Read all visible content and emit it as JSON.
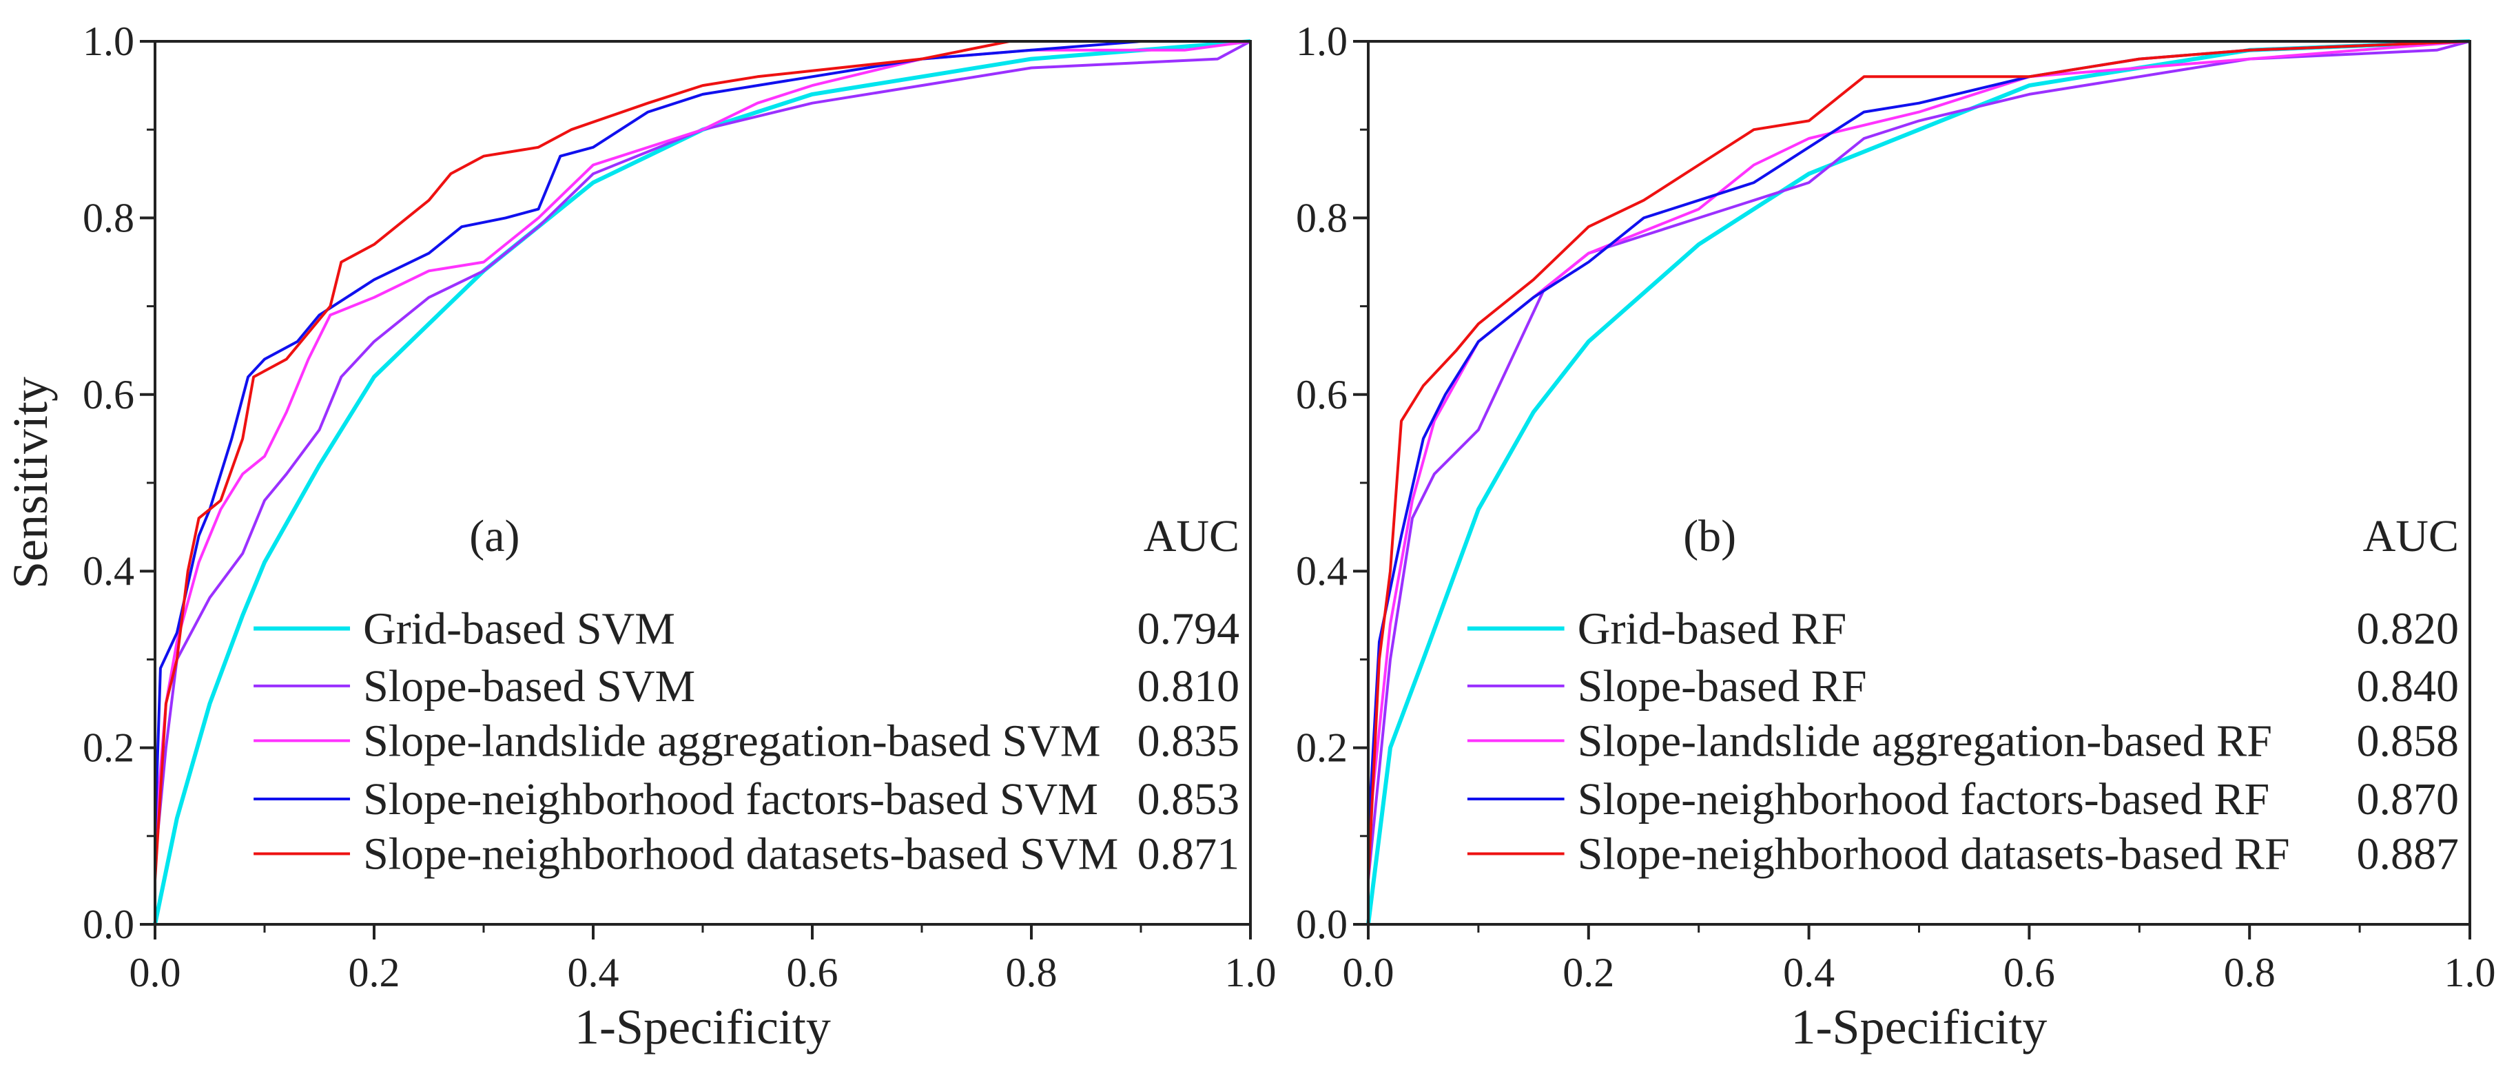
{
  "chart_data": [
    {
      "type": "line",
      "panel_label": "(a)",
      "xlabel": "1-Specificity",
      "ylabel": "Sensitivity",
      "xlim": [
        0,
        1
      ],
      "ylim": [
        0,
        1
      ],
      "xticks": [
        "0.0",
        "0.2",
        "0.4",
        "0.6",
        "0.8",
        "1.0"
      ],
      "yticks": [
        "0.0",
        "0.2",
        "0.4",
        "0.6",
        "0.8",
        "1.0"
      ],
      "grid": false,
      "legend_header": "AUC",
      "legend_position": "bottom-right",
      "series": [
        {
          "name": "Grid-based SVM",
          "auc": "0.794",
          "color": "#00e5ee",
          "points": [
            [
              0,
              0
            ],
            [
              0.02,
              0.12
            ],
            [
              0.05,
              0.25
            ],
            [
              0.08,
              0.35
            ],
            [
              0.1,
              0.41
            ],
            [
              0.15,
              0.52
            ],
            [
              0.2,
              0.62
            ],
            [
              0.25,
              0.68
            ],
            [
              0.3,
              0.74
            ],
            [
              0.35,
              0.79
            ],
            [
              0.4,
              0.84
            ],
            [
              0.5,
              0.9
            ],
            [
              0.6,
              0.94
            ],
            [
              0.7,
              0.96
            ],
            [
              0.8,
              0.98
            ],
            [
              0.9,
              0.99
            ],
            [
              1,
              1
            ]
          ]
        },
        {
          "name": "Slope-based SVM",
          "auc": "0.810",
          "color": "#9b30ff",
          "points": [
            [
              0,
              0.07
            ],
            [
              0.01,
              0.2
            ],
            [
              0.02,
              0.3
            ],
            [
              0.05,
              0.37
            ],
            [
              0.08,
              0.42
            ],
            [
              0.1,
              0.48
            ],
            [
              0.12,
              0.51
            ],
            [
              0.15,
              0.56
            ],
            [
              0.17,
              0.62
            ],
            [
              0.2,
              0.66
            ],
            [
              0.25,
              0.71
            ],
            [
              0.3,
              0.74
            ],
            [
              0.35,
              0.79
            ],
            [
              0.4,
              0.85
            ],
            [
              0.5,
              0.9
            ],
            [
              0.6,
              0.93
            ],
            [
              0.7,
              0.95
            ],
            [
              0.8,
              0.97
            ],
            [
              0.97,
              0.98
            ],
            [
              1,
              1
            ]
          ]
        },
        {
          "name": "Slope-landslide aggregation-based SVM",
          "auc": "0.835",
          "color": "#ff33ff",
          "points": [
            [
              0,
              0.1
            ],
            [
              0.01,
              0.25
            ],
            [
              0.02,
              0.32
            ],
            [
              0.04,
              0.41
            ],
            [
              0.06,
              0.47
            ],
            [
              0.08,
              0.51
            ],
            [
              0.1,
              0.53
            ],
            [
              0.12,
              0.58
            ],
            [
              0.14,
              0.64
            ],
            [
              0.16,
              0.69
            ],
            [
              0.2,
              0.71
            ],
            [
              0.25,
              0.74
            ],
            [
              0.3,
              0.75
            ],
            [
              0.35,
              0.8
            ],
            [
              0.4,
              0.86
            ],
            [
              0.5,
              0.9
            ],
            [
              0.55,
              0.93
            ],
            [
              0.6,
              0.95
            ],
            [
              0.7,
              0.98
            ],
            [
              0.8,
              0.99
            ],
            [
              0.94,
              0.99
            ],
            [
              1,
              1
            ]
          ]
        },
        {
          "name": "Slope-neighborhood factors-based SVM",
          "auc": "0.853",
          "color": "#1010ee",
          "points": [
            [
              0,
              0.1
            ],
            [
              0.005,
              0.29
            ],
            [
              0.02,
              0.33
            ],
            [
              0.04,
              0.44
            ],
            [
              0.05,
              0.47
            ],
            [
              0.07,
              0.55
            ],
            [
              0.085,
              0.62
            ],
            [
              0.1,
              0.64
            ],
            [
              0.13,
              0.66
            ],
            [
              0.15,
              0.69
            ],
            [
              0.2,
              0.73
            ],
            [
              0.25,
              0.76
            ],
            [
              0.28,
              0.79
            ],
            [
              0.32,
              0.8
            ],
            [
              0.35,
              0.81
            ],
            [
              0.37,
              0.87
            ],
            [
              0.4,
              0.88
            ],
            [
              0.45,
              0.92
            ],
            [
              0.5,
              0.94
            ],
            [
              0.6,
              0.96
            ],
            [
              0.7,
              0.98
            ],
            [
              0.8,
              0.99
            ],
            [
              0.9,
              1
            ],
            [
              1,
              1
            ]
          ]
        },
        {
          "name": "Slope-neighborhood datasets-based SVM",
          "auc": "0.871",
          "color": "#ee1111",
          "points": [
            [
              0,
              0.05
            ],
            [
              0.01,
              0.25
            ],
            [
              0.02,
              0.3
            ],
            [
              0.03,
              0.4
            ],
            [
              0.04,
              0.46
            ],
            [
              0.06,
              0.48
            ],
            [
              0.08,
              0.55
            ],
            [
              0.09,
              0.62
            ],
            [
              0.12,
              0.64
            ],
            [
              0.14,
              0.67
            ],
            [
              0.16,
              0.7
            ],
            [
              0.17,
              0.75
            ],
            [
              0.2,
              0.77
            ],
            [
              0.23,
              0.8
            ],
            [
              0.25,
              0.82
            ],
            [
              0.27,
              0.85
            ],
            [
              0.3,
              0.87
            ],
            [
              0.35,
              0.88
            ],
            [
              0.38,
              0.9
            ],
            [
              0.45,
              0.93
            ],
            [
              0.5,
              0.95
            ],
            [
              0.55,
              0.96
            ],
            [
              0.7,
              0.98
            ],
            [
              0.78,
              1
            ],
            [
              1,
              1
            ]
          ]
        }
      ]
    },
    {
      "type": "line",
      "panel_label": "(b)",
      "xlabel": "1-Specificity",
      "ylabel": "",
      "xlim": [
        0,
        1
      ],
      "ylim": [
        0,
        1
      ],
      "xticks": [
        "0.0",
        "0.2",
        "0.4",
        "0.6",
        "0.8",
        "1.0"
      ],
      "yticks": [
        "0.0",
        "0.2",
        "0.4",
        "0.6",
        "0.8",
        "1.0"
      ],
      "grid": false,
      "legend_header": "AUC",
      "legend_position": "bottom-right",
      "series": [
        {
          "name": "Grid-based RF",
          "auc": "0.820",
          "color": "#00e5ee",
          "points": [
            [
              0,
              0
            ],
            [
              0.02,
              0.2
            ],
            [
              0.05,
              0.3
            ],
            [
              0.1,
              0.47
            ],
            [
              0.15,
              0.58
            ],
            [
              0.2,
              0.66
            ],
            [
              0.3,
              0.77
            ],
            [
              0.4,
              0.85
            ],
            [
              0.5,
              0.9
            ],
            [
              0.6,
              0.95
            ],
            [
              0.7,
              0.97
            ],
            [
              0.8,
              0.99
            ],
            [
              1,
              1
            ]
          ]
        },
        {
          "name": "Slope-based RF",
          "auc": "0.840",
          "color": "#9b30ff",
          "points": [
            [
              0,
              0.05
            ],
            [
              0.02,
              0.3
            ],
            [
              0.04,
              0.46
            ],
            [
              0.06,
              0.51
            ],
            [
              0.1,
              0.56
            ],
            [
              0.13,
              0.64
            ],
            [
              0.16,
              0.72
            ],
            [
              0.2,
              0.76
            ],
            [
              0.25,
              0.78
            ],
            [
              0.3,
              0.8
            ],
            [
              0.35,
              0.82
            ],
            [
              0.4,
              0.84
            ],
            [
              0.45,
              0.89
            ],
            [
              0.5,
              0.91
            ],
            [
              0.6,
              0.94
            ],
            [
              0.7,
              0.96
            ],
            [
              0.8,
              0.98
            ],
            [
              0.97,
              0.99
            ],
            [
              1,
              1
            ]
          ]
        },
        {
          "name": "Slope-landslide aggregation-based RF",
          "auc": "0.858",
          "color": "#ff33ff",
          "points": [
            [
              0,
              0.1
            ],
            [
              0.02,
              0.34
            ],
            [
              0.04,
              0.48
            ],
            [
              0.06,
              0.57
            ],
            [
              0.1,
              0.66
            ],
            [
              0.15,
              0.71
            ],
            [
              0.2,
              0.76
            ],
            [
              0.3,
              0.81
            ],
            [
              0.35,
              0.86
            ],
            [
              0.4,
              0.89
            ],
            [
              0.5,
              0.92
            ],
            [
              0.6,
              0.96
            ],
            [
              0.7,
              0.97
            ],
            [
              0.8,
              0.98
            ],
            [
              1,
              1
            ]
          ]
        },
        {
          "name": "Slope-neighborhood factors-based RF",
          "auc": "0.870",
          "color": "#1010ee",
          "points": [
            [
              0,
              0.1
            ],
            [
              0.01,
              0.32
            ],
            [
              0.03,
              0.44
            ],
            [
              0.05,
              0.55
            ],
            [
              0.07,
              0.6
            ],
            [
              0.1,
              0.66
            ],
            [
              0.15,
              0.71
            ],
            [
              0.2,
              0.75
            ],
            [
              0.25,
              0.8
            ],
            [
              0.3,
              0.82
            ],
            [
              0.35,
              0.84
            ],
            [
              0.4,
              0.88
            ],
            [
              0.45,
              0.92
            ],
            [
              0.5,
              0.93
            ],
            [
              0.6,
              0.96
            ],
            [
              0.7,
              0.98
            ],
            [
              0.8,
              0.99
            ],
            [
              1,
              1
            ]
          ]
        },
        {
          "name": "Slope-neighborhood datasets-based RF",
          "auc": "0.887",
          "color": "#ee1111",
          "points": [
            [
              0,
              0.05
            ],
            [
              0.01,
              0.3
            ],
            [
              0.02,
              0.4
            ],
            [
              0.03,
              0.57
            ],
            [
              0.05,
              0.61
            ],
            [
              0.08,
              0.65
            ],
            [
              0.1,
              0.68
            ],
            [
              0.15,
              0.73
            ],
            [
              0.2,
              0.79
            ],
            [
              0.25,
              0.82
            ],
            [
              0.3,
              0.86
            ],
            [
              0.35,
              0.9
            ],
            [
              0.4,
              0.91
            ],
            [
              0.45,
              0.96
            ],
            [
              0.5,
              0.96
            ],
            [
              0.6,
              0.96
            ],
            [
              0.7,
              0.98
            ],
            [
              0.8,
              0.99
            ],
            [
              1,
              1
            ]
          ]
        }
      ]
    }
  ]
}
